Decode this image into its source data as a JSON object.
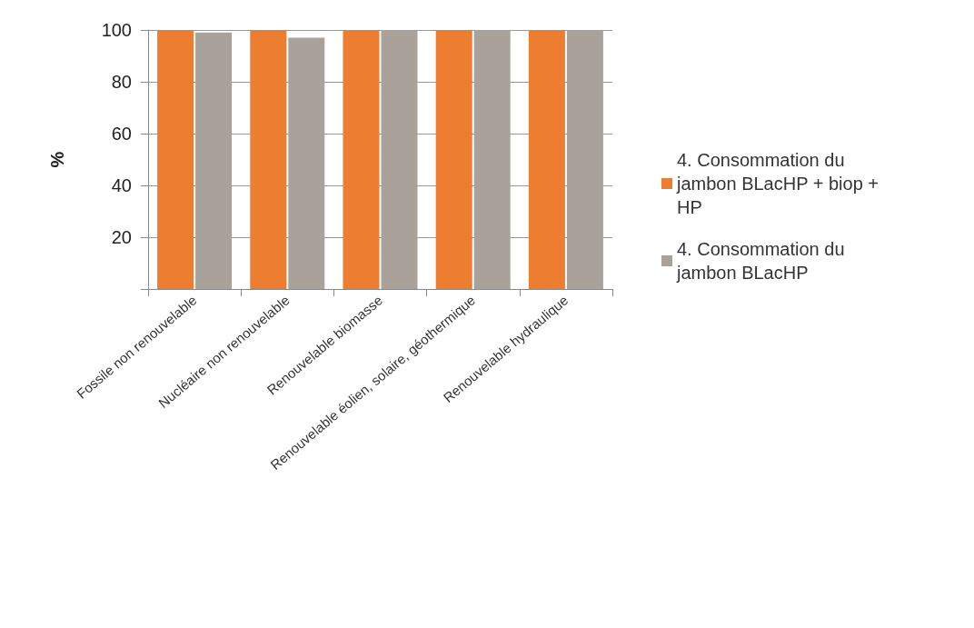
{
  "chart_data": {
    "type": "bar",
    "ylabel": "%",
    "categories": [
      "Fossile non renouvelable",
      "Nucléaire non renouvelable",
      "Renouvelable biomasse",
      "Renouvelable éolien, solaire, géothermique",
      "Renouvelable hydraulique"
    ],
    "series": [
      {
        "name": "4. Consommation du jambon BLacHP + biop + HP",
        "color": "#ed7d31",
        "values": [
          100,
          100,
          100,
          100,
          100
        ]
      },
      {
        "name": "4. Consommation du jambon BLacHP",
        "color": "#a8a29a",
        "values": [
          99,
          97,
          100,
          100,
          100
        ]
      }
    ],
    "ylim": [
      0,
      100
    ],
    "yticks": [
      {
        "value": 0,
        "label": null
      },
      20,
      40,
      60,
      80,
      100
    ],
    "grid": "y",
    "legend": "right"
  }
}
